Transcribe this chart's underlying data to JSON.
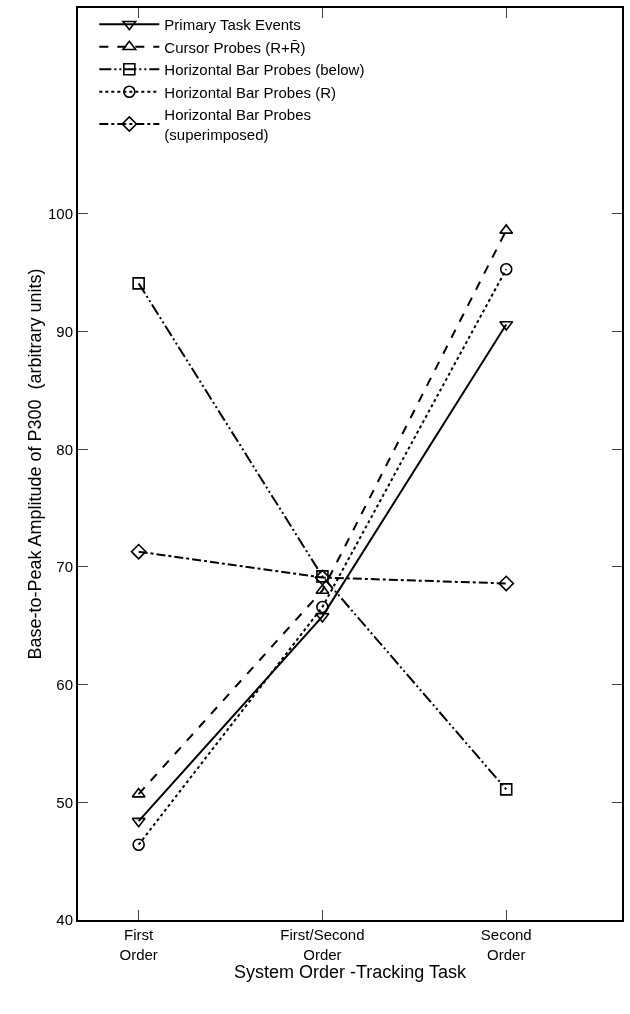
{
  "chart_data": {
    "type": "line",
    "xlabel": "System Order -Tracking Task",
    "ylabel": "Base-to-Peak Amplitude of P300  (arbitrary units)",
    "categories": [
      "First\nOrder",
      "First/Second\nOrder",
      "Second\nOrder"
    ],
    "ylim": [
      40,
      117.5
    ],
    "yticks": [
      40,
      50,
      60,
      70,
      80,
      90,
      100
    ],
    "legend": "top left",
    "series": [
      {
        "name": "Primary Task Events",
        "color": "#000000",
        "values": [
          48.4,
          65.8,
          90.6
        ],
        "marker": "triangle-down",
        "line_style": "solid"
      },
      {
        "name": "Cursor Probes (R+R̄)",
        "color": "#000000",
        "values": [
          50.7,
          68,
          98.6
        ],
        "marker": "triangle",
        "line_style": "dashed"
      },
      {
        "name": "Horizontal Bar Probes (below)",
        "color": "#000000",
        "values": [
          94.1,
          69.2,
          51.1
        ],
        "marker": "square",
        "line_style": "dashdotdot"
      },
      {
        "name": "Horizontal Bar Probes (R)",
        "color": "#000000",
        "values": [
          46.4,
          66.6,
          95.3
        ],
        "marker": "circle",
        "line_style": "dotted"
      },
      {
        "name": "Horizontal Bar Probes\n(superimposed)",
        "color": "#000000",
        "values": [
          71.3,
          69.1,
          68.6
        ],
        "marker": "diamond",
        "line_style": "dashdot"
      }
    ]
  }
}
